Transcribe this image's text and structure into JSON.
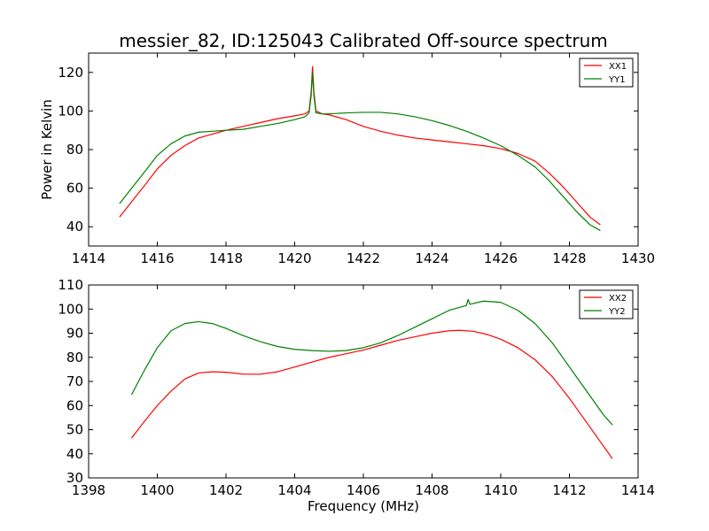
{
  "figure": {
    "title": "messier_82, ID:125043 Calibrated Off-source spectrum"
  },
  "chart_data": [
    {
      "type": "line",
      "title": "messier_82, ID:125043 Calibrated Off-source spectrum",
      "xlabel": "",
      "ylabel": "Power in Kelvin",
      "xlim": [
        1414,
        1430
      ],
      "ylim": [
        30,
        130
      ],
      "xticks": [
        "1414",
        "1416",
        "1418",
        "1420",
        "1422",
        "1424",
        "1426",
        "1428",
        "1430"
      ],
      "yticks": [
        "40",
        "60",
        "80",
        "100",
        "120"
      ],
      "grid": false,
      "legend_position": "top-right",
      "series": [
        {
          "name": "XX1",
          "color": "#ff0000",
          "x": [
            1414.9,
            1415.3,
            1415.7,
            1416.0,
            1416.4,
            1416.8,
            1417.2,
            1417.6,
            1418.0,
            1418.5,
            1419.0,
            1419.5,
            1420.0,
            1420.3,
            1420.42,
            1420.48,
            1420.52,
            1420.56,
            1420.62,
            1420.8,
            1421.0,
            1421.5,
            1422.0,
            1422.5,
            1423.0,
            1423.5,
            1424.0,
            1424.5,
            1425.0,
            1425.5,
            1426.0,
            1426.5,
            1427.0,
            1427.4,
            1427.8,
            1428.2,
            1428.6,
            1428.9
          ],
          "y": [
            45,
            54,
            63,
            70,
            77,
            82,
            86,
            88,
            90,
            92,
            94,
            96,
            97.5,
            98.5,
            100,
            110,
            123,
            110,
            100,
            98.5,
            98,
            95.5,
            92,
            89.5,
            87.5,
            86,
            85,
            84,
            83,
            82,
            80.5,
            78,
            74,
            68,
            61,
            53,
            45,
            41
          ]
        },
        {
          "name": "YY1",
          "color": "#008000",
          "x": [
            1414.9,
            1415.3,
            1415.7,
            1416.0,
            1416.4,
            1416.8,
            1417.2,
            1417.6,
            1418.0,
            1418.5,
            1419.0,
            1419.5,
            1420.0,
            1420.3,
            1420.42,
            1420.48,
            1420.52,
            1420.56,
            1420.62,
            1420.8,
            1421.0,
            1421.5,
            1422.0,
            1422.5,
            1423.0,
            1423.5,
            1424.0,
            1424.5,
            1425.0,
            1425.5,
            1426.0,
            1426.5,
            1427.0,
            1427.4,
            1427.8,
            1428.2,
            1428.6,
            1428.9
          ],
          "y": [
            52,
            61,
            70,
            77,
            83,
            87,
            89,
            89.5,
            90,
            90.5,
            92,
            93.5,
            95.5,
            97,
            99,
            108,
            120,
            108,
            99,
            98.5,
            98.5,
            99,
            99.3,
            99.3,
            98.5,
            97,
            95,
            92.5,
            89.5,
            86,
            82,
            77,
            71,
            64,
            56,
            48,
            41,
            38
          ]
        }
      ]
    },
    {
      "type": "line",
      "title": "",
      "xlabel": "Frequency (MHz)",
      "ylabel": "",
      "xlim": [
        1398,
        1414
      ],
      "ylim": [
        30,
        110
      ],
      "xticks": [
        "1398",
        "1400",
        "1402",
        "1404",
        "1406",
        "1408",
        "1410",
        "1412",
        "1414"
      ],
      "yticks": [
        "30",
        "40",
        "50",
        "60",
        "70",
        "80",
        "90",
        "100",
        "110"
      ],
      "grid": false,
      "legend_position": "top-right",
      "series": [
        {
          "name": "XX2",
          "color": "#ff0000",
          "x": [
            1399.25,
            1399.6,
            1400.0,
            1400.4,
            1400.8,
            1401.2,
            1401.6,
            1402.0,
            1402.5,
            1403.0,
            1403.5,
            1404.0,
            1404.5,
            1405.0,
            1405.5,
            1406.0,
            1406.5,
            1407.0,
            1407.5,
            1408.0,
            1408.5,
            1408.8,
            1409.2,
            1409.6,
            1410.0,
            1410.5,
            1411.0,
            1411.5,
            1412.0,
            1412.5,
            1413.0,
            1413.25
          ],
          "y": [
            46.5,
            53,
            60,
            66,
            71,
            73.5,
            74,
            73.8,
            73,
            73,
            74,
            76,
            78,
            80,
            81.5,
            83,
            85,
            87,
            88.5,
            90,
            91,
            91.2,
            90.8,
            89.5,
            87.5,
            84,
            79,
            72,
            63,
            53,
            43,
            38
          ]
        },
        {
          "name": "YY2",
          "color": "#008000",
          "x": [
            1399.25,
            1399.6,
            1400.0,
            1400.4,
            1400.8,
            1401.2,
            1401.6,
            1402.0,
            1402.5,
            1403.0,
            1403.5,
            1404.0,
            1404.5,
            1405.0,
            1405.5,
            1406.0,
            1406.5,
            1407.0,
            1407.5,
            1408.0,
            1408.5,
            1409.0,
            1409.05,
            1409.1,
            1409.5,
            1410.0,
            1410.5,
            1411.0,
            1411.5,
            1412.0,
            1412.5,
            1413.0,
            1413.25
          ],
          "y": [
            64.5,
            74,
            84,
            91,
            94,
            94.8,
            94,
            92,
            89,
            86.5,
            84.5,
            83.3,
            82.8,
            82.5,
            82.8,
            84,
            86,
            89,
            92.5,
            96,
            99.5,
            101.5,
            104,
            102,
            103.3,
            102.8,
            99.5,
            94,
            86,
            76,
            66,
            56,
            52
          ]
        }
      ]
    }
  ]
}
